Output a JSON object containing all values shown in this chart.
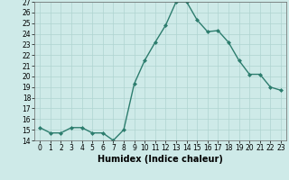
{
  "x": [
    0,
    1,
    2,
    3,
    4,
    5,
    6,
    7,
    8,
    9,
    10,
    11,
    12,
    13,
    14,
    15,
    16,
    17,
    18,
    19,
    20,
    21,
    22,
    23
  ],
  "y": [
    15.2,
    14.7,
    14.7,
    15.2,
    15.2,
    14.7,
    14.7,
    14.0,
    15.0,
    19.3,
    21.5,
    23.2,
    24.8,
    27.0,
    27.0,
    25.3,
    24.2,
    24.3,
    23.2,
    21.5,
    20.2,
    20.2,
    19.0,
    18.7
  ],
  "xlabel": "Humidex (Indice chaleur)",
  "line_color": "#2d7d6e",
  "marker": "D",
  "marker_size": 2.0,
  "bg_color": "#ceeae8",
  "grid_color": "#afd4d0",
  "ylim": [
    14,
    27
  ],
  "xlim_min": -0.5,
  "xlim_max": 23.5,
  "yticks": [
    14,
    15,
    16,
    17,
    18,
    19,
    20,
    21,
    22,
    23,
    24,
    25,
    26,
    27
  ],
  "xticks": [
    0,
    1,
    2,
    3,
    4,
    5,
    6,
    7,
    8,
    9,
    10,
    11,
    12,
    13,
    14,
    15,
    16,
    17,
    18,
    19,
    20,
    21,
    22,
    23
  ],
  "tick_fontsize": 5.5,
  "xlabel_fontsize": 7.0,
  "linewidth": 1.0
}
